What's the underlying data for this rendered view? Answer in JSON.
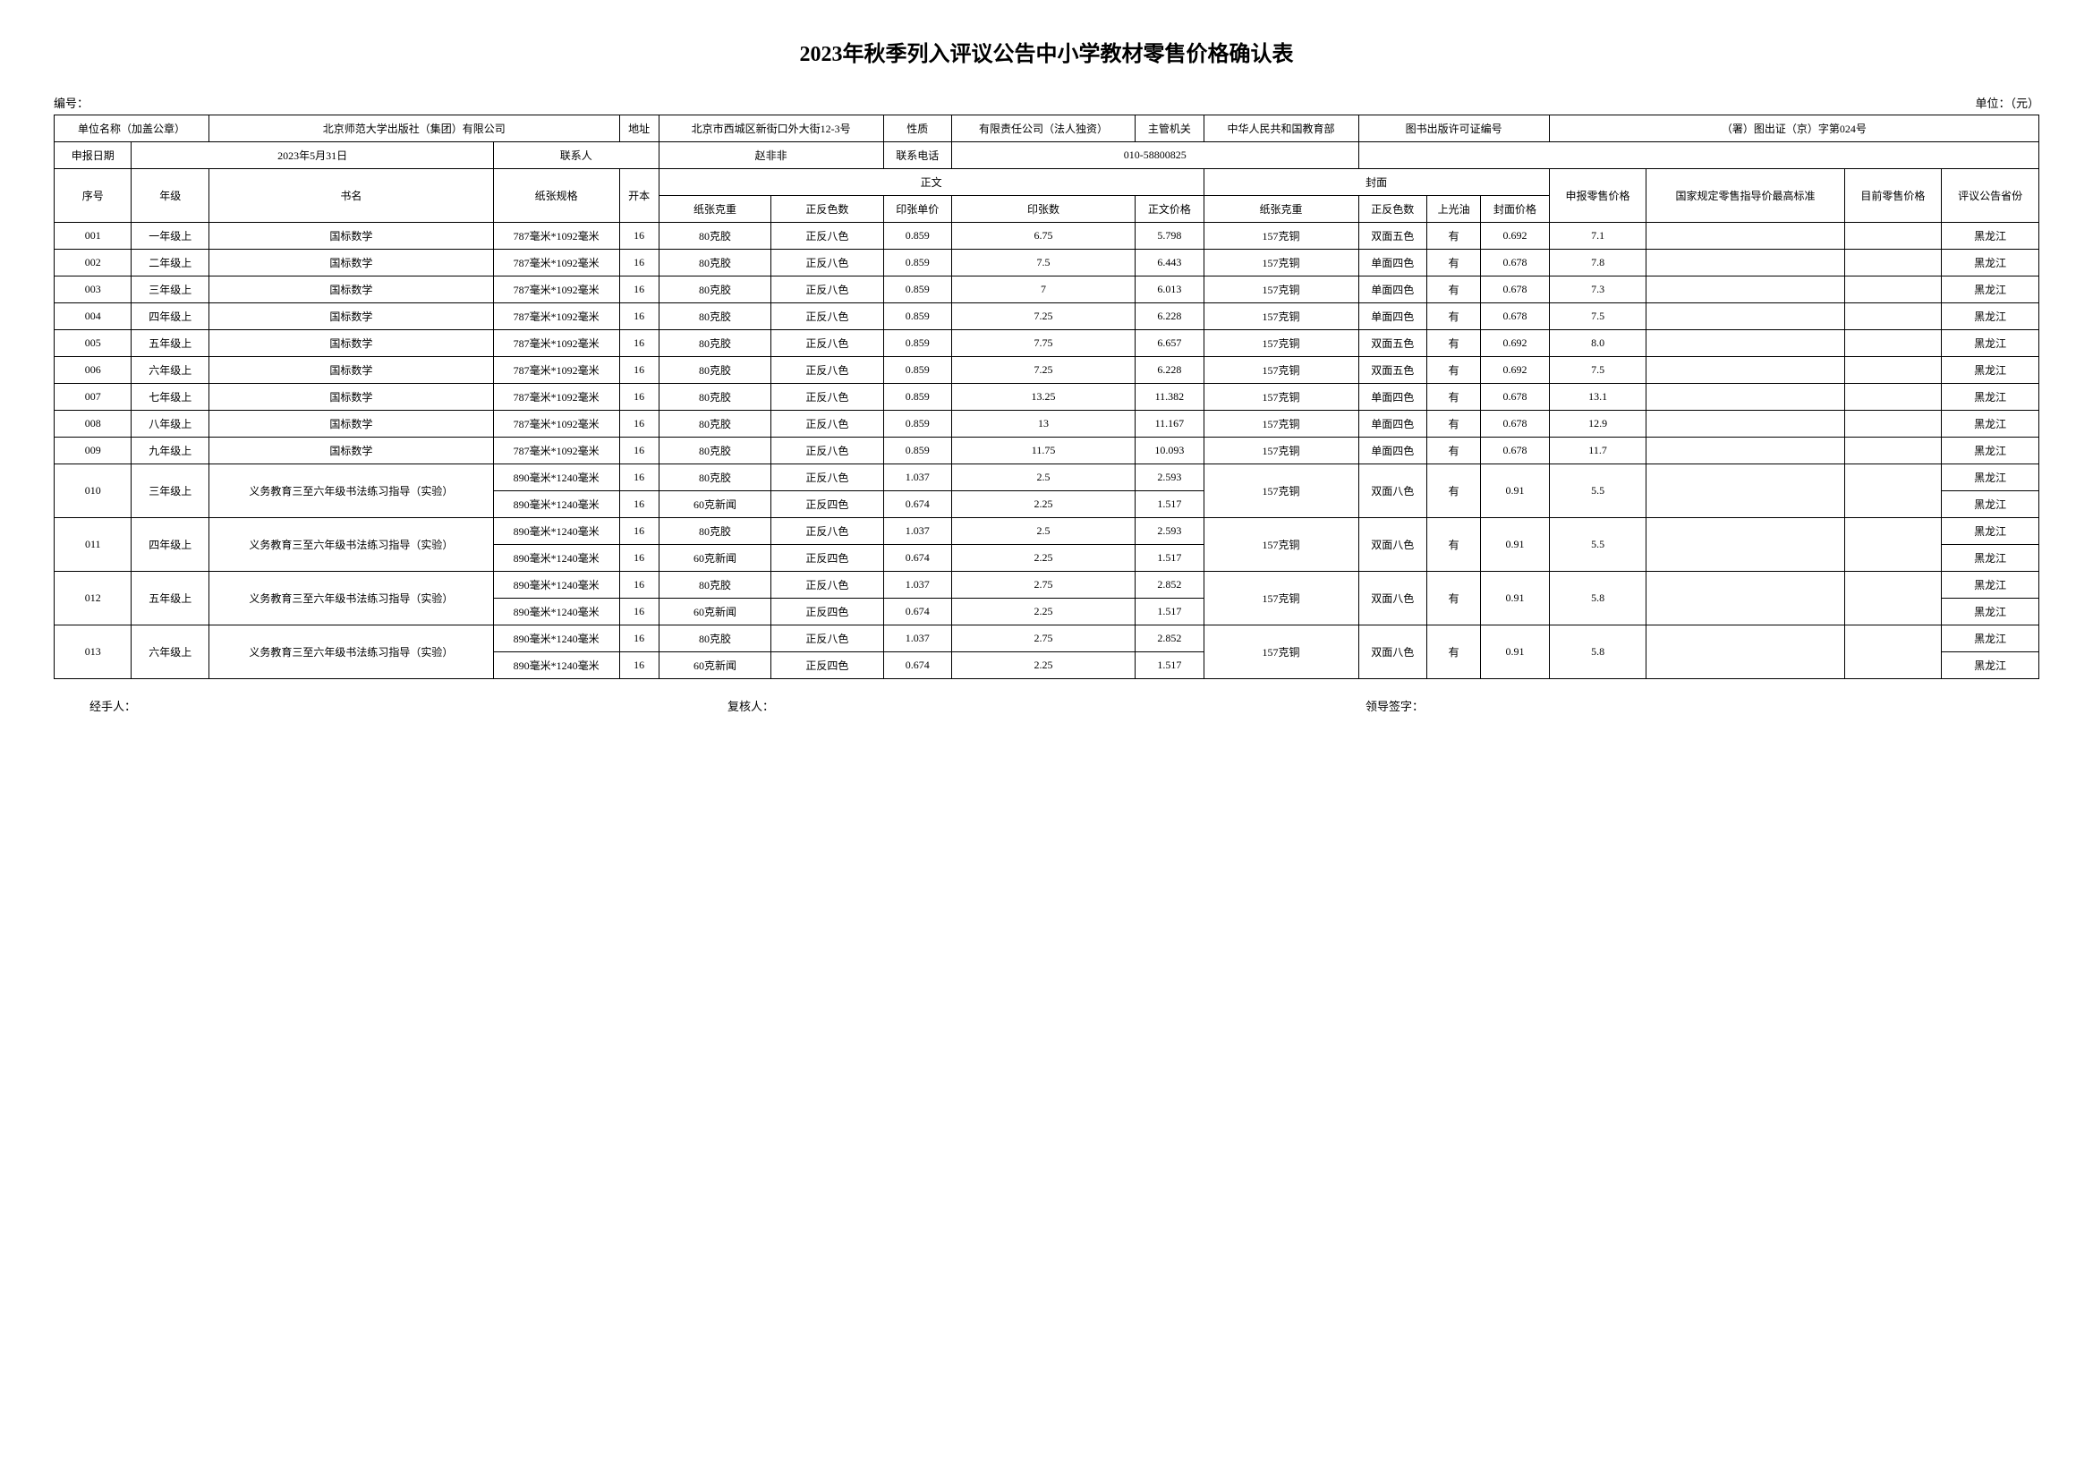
{
  "title": "2023年秋季列入评议公告中小学教材零售价格确认表",
  "meta": {
    "serial_label": "编号：",
    "unit_label": "单位：（元）"
  },
  "header": {
    "org_label": "单位名称（加盖公章）",
    "org_value": "北京师范大学出版社（集团）有限公司",
    "address_label": "地址",
    "address_value": "北京市西城区新街口外大街12-3号",
    "nature_label": "性质",
    "nature_value": "有限责任公司（法人独资）",
    "authority_label": "主管机关",
    "authority_value": "中华人民共和国教育部",
    "license_label": "图书出版许可证编号",
    "license_value": "（署）图出证（京）字第024号",
    "report_date_label": "申报日期",
    "report_date_value": "2023年5月31日",
    "contact_label": "联系人",
    "contact_value": "赵非非",
    "phone_label": "联系电话",
    "phone_value": "010-58800825"
  },
  "columns": {
    "seq": "序号",
    "grade": "年级",
    "book": "书名",
    "paper_spec": "纸张规格",
    "format": "开本",
    "main_text": "正文",
    "paper_weight": "纸张克重",
    "color_count": "正反色数",
    "sheet_price": "印张单价",
    "sheet_count": "印张数",
    "text_price": "正文价格",
    "cover": "封面",
    "cover_weight": "纸张克重",
    "cover_color": "正反色数",
    "glaze": "上光油",
    "cover_price": "封面价格",
    "report_price": "申报零售价格",
    "national_max": "国家规定零售指导价最高标准",
    "current_price": "目前零售价格",
    "province": "评议公告省份"
  },
  "rows": [
    {
      "seq": "001",
      "grade": "一年级上",
      "book": "国标数学",
      "spec": "787毫米*1092毫米",
      "format": "16",
      "weight": "80克胶",
      "color": "正反八色",
      "unit": "0.859",
      "count": "6.75",
      "price": "5.798",
      "cw": "157克铜",
      "cc": "双面五色",
      "glaze": "有",
      "cp": "0.692",
      "rp": "7.1",
      "prov": "黑龙江"
    },
    {
      "seq": "002",
      "grade": "二年级上",
      "book": "国标数学",
      "spec": "787毫米*1092毫米",
      "format": "16",
      "weight": "80克胶",
      "color": "正反八色",
      "unit": "0.859",
      "count": "7.5",
      "price": "6.443",
      "cw": "157克铜",
      "cc": "单面四色",
      "glaze": "有",
      "cp": "0.678",
      "rp": "7.8",
      "prov": "黑龙江"
    },
    {
      "seq": "003",
      "grade": "三年级上",
      "book": "国标数学",
      "spec": "787毫米*1092毫米",
      "format": "16",
      "weight": "80克胶",
      "color": "正反八色",
      "unit": "0.859",
      "count": "7",
      "price": "6.013",
      "cw": "157克铜",
      "cc": "单面四色",
      "glaze": "有",
      "cp": "0.678",
      "rp": "7.3",
      "prov": "黑龙江"
    },
    {
      "seq": "004",
      "grade": "四年级上",
      "book": "国标数学",
      "spec": "787毫米*1092毫米",
      "format": "16",
      "weight": "80克胶",
      "color": "正反八色",
      "unit": "0.859",
      "count": "7.25",
      "price": "6.228",
      "cw": "157克铜",
      "cc": "单面四色",
      "glaze": "有",
      "cp": "0.678",
      "rp": "7.5",
      "prov": "黑龙江"
    },
    {
      "seq": "005",
      "grade": "五年级上",
      "book": "国标数学",
      "spec": "787毫米*1092毫米",
      "format": "16",
      "weight": "80克胶",
      "color": "正反八色",
      "unit": "0.859",
      "count": "7.75",
      "price": "6.657",
      "cw": "157克铜",
      "cc": "双面五色",
      "glaze": "有",
      "cp": "0.692",
      "rp": "8.0",
      "prov": "黑龙江"
    },
    {
      "seq": "006",
      "grade": "六年级上",
      "book": "国标数学",
      "spec": "787毫米*1092毫米",
      "format": "16",
      "weight": "80克胶",
      "color": "正反八色",
      "unit": "0.859",
      "count": "7.25",
      "price": "6.228",
      "cw": "157克铜",
      "cc": "双面五色",
      "glaze": "有",
      "cp": "0.692",
      "rp": "7.5",
      "prov": "黑龙江"
    },
    {
      "seq": "007",
      "grade": "七年级上",
      "book": "国标数学",
      "spec": "787毫米*1092毫米",
      "format": "16",
      "weight": "80克胶",
      "color": "正反八色",
      "unit": "0.859",
      "count": "13.25",
      "price": "11.382",
      "cw": "157克铜",
      "cc": "单面四色",
      "glaze": "有",
      "cp": "0.678",
      "rp": "13.1",
      "prov": "黑龙江"
    },
    {
      "seq": "008",
      "grade": "八年级上",
      "book": "国标数学",
      "spec": "787毫米*1092毫米",
      "format": "16",
      "weight": "80克胶",
      "color": "正反八色",
      "unit": "0.859",
      "count": "13",
      "price": "11.167",
      "cw": "157克铜",
      "cc": "单面四色",
      "glaze": "有",
      "cp": "0.678",
      "rp": "12.9",
      "prov": "黑龙江"
    },
    {
      "seq": "009",
      "grade": "九年级上",
      "book": "国标数学",
      "spec": "787毫米*1092毫米",
      "format": "16",
      "weight": "80克胶",
      "color": "正反八色",
      "unit": "0.859",
      "count": "11.75",
      "price": "10.093",
      "cw": "157克铜",
      "cc": "单面四色",
      "glaze": "有",
      "cp": "0.678",
      "rp": "11.7",
      "prov": "黑龙江"
    }
  ],
  "multi_rows": [
    {
      "seq": "010",
      "grade": "三年级上",
      "book": "义务教育三至六年级书法练习指导（实验）",
      "sub": [
        {
          "spec": "890毫米*1240毫米",
          "format": "16",
          "weight": "80克胶",
          "color": "正反八色",
          "unit": "1.037",
          "count": "2.5",
          "price": "2.593",
          "prov": "黑龙江"
        },
        {
          "spec": "890毫米*1240毫米",
          "format": "16",
          "weight": "60克新闻",
          "color": "正反四色",
          "unit": "0.674",
          "count": "2.25",
          "price": "1.517",
          "prov": "黑龙江"
        }
      ],
      "cw": "157克铜",
      "cc": "双面八色",
      "glaze": "有",
      "cp": "0.91",
      "rp": "5.5"
    },
    {
      "seq": "011",
      "grade": "四年级上",
      "book": "义务教育三至六年级书法练习指导（实验）",
      "sub": [
        {
          "spec": "890毫米*1240毫米",
          "format": "16",
          "weight": "80克胶",
          "color": "正反八色",
          "unit": "1.037",
          "count": "2.5",
          "price": "2.593",
          "prov": "黑龙江"
        },
        {
          "spec": "890毫米*1240毫米",
          "format": "16",
          "weight": "60克新闻",
          "color": "正反四色",
          "unit": "0.674",
          "count": "2.25",
          "price": "1.517",
          "prov": "黑龙江"
        }
      ],
      "cw": "157克铜",
      "cc": "双面八色",
      "glaze": "有",
      "cp": "0.91",
      "rp": "5.5"
    },
    {
      "seq": "012",
      "grade": "五年级上",
      "book": "义务教育三至六年级书法练习指导（实验）",
      "sub": [
        {
          "spec": "890毫米*1240毫米",
          "format": "16",
          "weight": "80克胶",
          "color": "正反八色",
          "unit": "1.037",
          "count": "2.75",
          "price": "2.852",
          "prov": "黑龙江"
        },
        {
          "spec": "890毫米*1240毫米",
          "format": "16",
          "weight": "60克新闻",
          "color": "正反四色",
          "unit": "0.674",
          "count": "2.25",
          "price": "1.517",
          "prov": "黑龙江"
        }
      ],
      "cw": "157克铜",
      "cc": "双面八色",
      "glaze": "有",
      "cp": "0.91",
      "rp": "5.8"
    },
    {
      "seq": "013",
      "grade": "六年级上",
      "book": "义务教育三至六年级书法练习指导（实验）",
      "sub": [
        {
          "spec": "890毫米*1240毫米",
          "format": "16",
          "weight": "80克胶",
          "color": "正反八色",
          "unit": "1.037",
          "count": "2.75",
          "price": "2.852",
          "prov": "黑龙江"
        },
        {
          "spec": "890毫米*1240毫米",
          "format": "16",
          "weight": "60克新闻",
          "color": "正反四色",
          "unit": "0.674",
          "count": "2.25",
          "price": "1.517",
          "prov": "黑龙江"
        }
      ],
      "cw": "157克铜",
      "cc": "双面八色",
      "glaze": "有",
      "cp": "0.91",
      "rp": "5.8"
    }
  ],
  "footer": {
    "handler": "经手人：",
    "reviewer": "复核人：",
    "leader": "领导签字："
  }
}
